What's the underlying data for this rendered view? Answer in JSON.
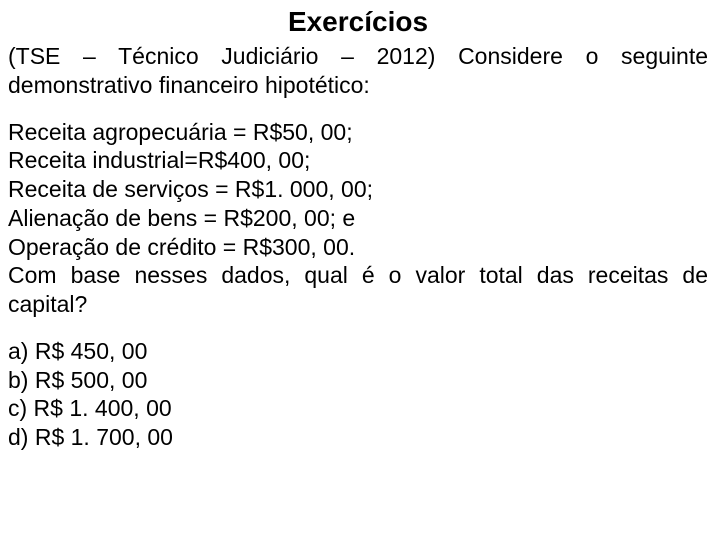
{
  "title": "Exercícios",
  "intro": "(TSE – Técnico Judiciário – 2012) Considere o seguinte demonstrativo financeiro hipotético:",
  "data": {
    "line1": "Receita agropecuária = R$50, 00;",
    "line2": "Receita industrial=R$400, 00;",
    "line3": "Receita de serviços = R$1. 000, 00;",
    "line4": "Alienação de bens = R$200, 00; e",
    "line5": "Operação de crédito = R$300, 00.",
    "question": "Com base nesses dados, qual é o valor total das receitas de capital?"
  },
  "options": {
    "a": "a) R$ 450, 00",
    "b": "b) R$ 500, 00",
    "c": "c) R$ 1. 400, 00",
    "d": "d) R$ 1. 700, 00"
  },
  "colors": {
    "background": "#ffffff",
    "text": "#000000"
  },
  "typography": {
    "title_fontsize": 28,
    "body_fontsize": 23,
    "title_weight": "bold",
    "font_family": "Arial"
  }
}
